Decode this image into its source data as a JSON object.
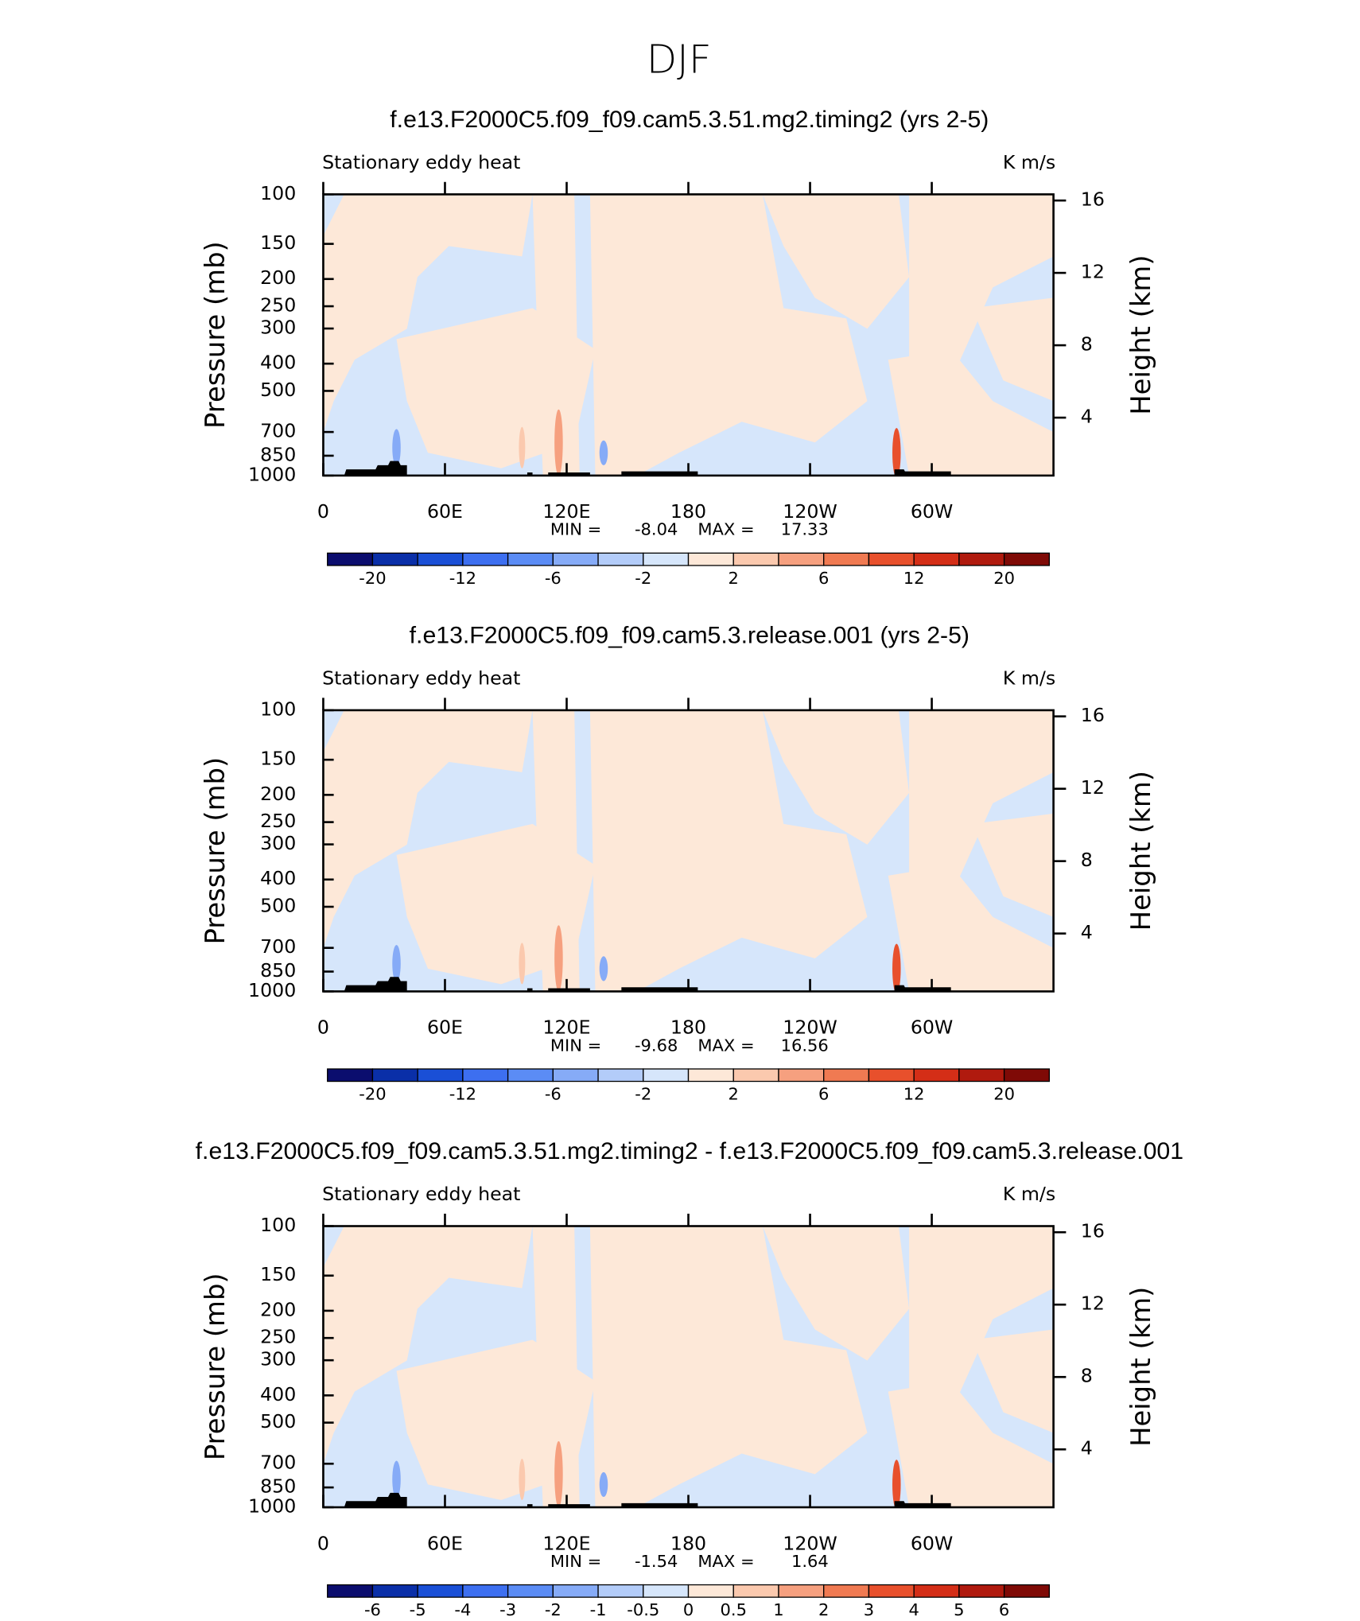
{
  "title": "DJF",
  "chart_data": [
    {
      "type": "contour",
      "title": "f.e13.F2000C5.f09_f09.cam5.3.51.mg2.timing2 (yrs 2-5)",
      "left_title": "Stationary eddy heat",
      "right_title": "K m/s",
      "ylabel": "Pressure (mb)",
      "y2label": "Height (km)",
      "ylog": true,
      "ylim": [
        1000,
        100
      ],
      "yticks": [
        100,
        150,
        200,
        250,
        300,
        400,
        500,
        700,
        850,
        1000
      ],
      "y2lim": [
        0.8,
        16.34
      ],
      "y2ticks": [
        4,
        8,
        12,
        16
      ],
      "xlim": [
        0,
        360
      ],
      "xticks": [
        0,
        {
          "value": 60,
          "label": "60E"
        },
        {
          "value": 120,
          "label": "120E"
        },
        180,
        {
          "value": 240,
          "label": "120W"
        },
        {
          "value": 300,
          "label": "60W"
        }
      ],
      "min_label": "MIN =",
      "min": -8.04,
      "max_label": "MAX =",
      "max": 17.33,
      "colorbar": {
        "colors": [
          "#0b0d6e",
          "#0a2fa8",
          "#1a4fd6",
          "#3d6ff0",
          "#5b8cf5",
          "#86abf7",
          "#b3ccf9",
          "#d6e6fb",
          "#fde8d8",
          "#fbc9ae",
          "#f6a07f",
          "#f07a52",
          "#e8502c",
          "#d42e17",
          "#b01a0e",
          "#7f0a06"
        ],
        "labels": [
          -20,
          null,
          -12,
          null,
          -6,
          null,
          -2,
          null,
          2,
          null,
          6,
          null,
          12,
          null,
          20
        ]
      }
    },
    {
      "type": "contour",
      "title": "f.e13.F2000C5.f09_f09.cam5.3.release.001 (yrs 2-5)",
      "left_title": "Stationary eddy heat",
      "right_title": "K m/s",
      "ylabel": "Pressure (mb)",
      "y2label": "Height (km)",
      "ylog": true,
      "ylim": [
        1000,
        100
      ],
      "yticks": [
        100,
        150,
        200,
        250,
        300,
        400,
        500,
        700,
        850,
        1000
      ],
      "y2lim": [
        0.8,
        16.34
      ],
      "y2ticks": [
        4,
        8,
        12,
        16
      ],
      "xlim": [
        0,
        360
      ],
      "xticks": [
        0,
        {
          "value": 60,
          "label": "60E"
        },
        {
          "value": 120,
          "label": "120E"
        },
        180,
        {
          "value": 240,
          "label": "120W"
        },
        {
          "value": 300,
          "label": "60W"
        }
      ],
      "min_label": "MIN =",
      "min": -9.68,
      "max_label": "MAX =",
      "max": 16.56,
      "colorbar": {
        "colors": [
          "#0b0d6e",
          "#0a2fa8",
          "#1a4fd6",
          "#3d6ff0",
          "#5b8cf5",
          "#86abf7",
          "#b3ccf9",
          "#d6e6fb",
          "#fde8d8",
          "#fbc9ae",
          "#f6a07f",
          "#f07a52",
          "#e8502c",
          "#d42e17",
          "#b01a0e",
          "#7f0a06"
        ],
        "labels": [
          -20,
          null,
          -12,
          null,
          -6,
          null,
          -2,
          null,
          2,
          null,
          6,
          null,
          12,
          null,
          20
        ]
      }
    },
    {
      "type": "contour",
      "title": "f.e13.F2000C5.f09_f09.cam5.3.51.mg2.timing2 - f.e13.F2000C5.f09_f09.cam5.3.release.001",
      "left_title": "Stationary eddy heat",
      "right_title": "K m/s",
      "ylabel": "Pressure (mb)",
      "y2label": "Height (km)",
      "ylog": true,
      "ylim": [
        1000,
        100
      ],
      "yticks": [
        100,
        150,
        200,
        250,
        300,
        400,
        500,
        700,
        850,
        1000
      ],
      "y2lim": [
        0.8,
        16.34
      ],
      "y2ticks": [
        4,
        8,
        12,
        16
      ],
      "xlim": [
        0,
        360
      ],
      "xticks": [
        0,
        {
          "value": 60,
          "label": "60E"
        },
        {
          "value": 120,
          "label": "120E"
        },
        180,
        {
          "value": 240,
          "label": "120W"
        },
        {
          "value": 300,
          "label": "60W"
        }
      ],
      "min_label": "MIN =",
      "min": -1.54,
      "max_label": "MAX =",
      "max": 1.64,
      "colorbar": {
        "colors": [
          "#0b0d6e",
          "#0a2fa8",
          "#1a4fd6",
          "#3d6ff0",
          "#5b8cf5",
          "#86abf7",
          "#b3ccf9",
          "#d6e6fb",
          "#fde8d8",
          "#fbc9ae",
          "#f6a07f",
          "#f07a52",
          "#e8502c",
          "#d42e17",
          "#b01a0e",
          "#7f0a06"
        ],
        "labels": [
          -6,
          -5,
          -4,
          -3,
          -2,
          -1,
          -0.5,
          0,
          0.5,
          1,
          2,
          3,
          4,
          5,
          6
        ]
      }
    }
  ]
}
